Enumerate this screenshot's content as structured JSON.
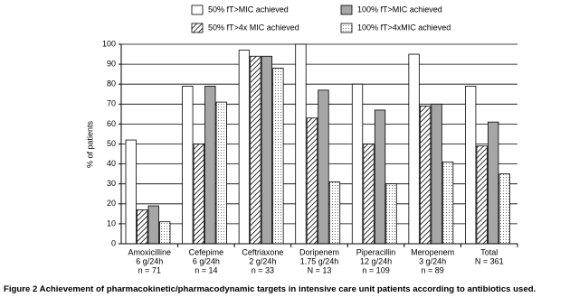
{
  "chart_data": {
    "type": "bar",
    "caption_label": "Figure 2",
    "caption": "Achievement of pharmacokinetic/pharmacodynamic targets in intensive care unit patients according to antibiotics used.",
    "y_label": "% of patients",
    "categories": [
      [
        "Amoxicilline",
        "6 g/24h",
        "n = 71"
      ],
      [
        "Cefepime",
        "6 g/24h",
        "n = 14"
      ],
      [
        "Ceftriaxone",
        "2 g/24h",
        "n = 33"
      ],
      [
        "Doripenem",
        "1.75 g/24h",
        "N = 13"
      ],
      [
        "Piperacillin",
        "12 g/24h",
        "n = 109"
      ],
      [
        "Meropenem",
        "3 g/24h",
        "n = 89"
      ],
      [
        "Total",
        "N = 361"
      ]
    ],
    "series": [
      {
        "name": "50% fT>MIC achieved",
        "color": "#ffffff",
        "pattern": "none",
        "values": [
          52,
          79,
          97,
          100,
          80,
          95,
          79
        ]
      },
      {
        "name": "50% fT>4x MIC achieved",
        "color": "#ffffff",
        "pattern": "hatch",
        "values": [
          17,
          50,
          94,
          63,
          50,
          69,
          49
        ]
      },
      {
        "name": "100% fT>MIC achieved",
        "color": "#a6a6a6",
        "pattern": "none",
        "values": [
          19,
          79,
          94,
          77,
          67,
          70,
          61
        ]
      },
      {
        "name": "100% fT>4xMIC achieved",
        "color": "#ffffff",
        "pattern": "dots",
        "values": [
          11,
          71,
          88,
          31,
          30,
          41,
          35
        ]
      }
    ],
    "ylim": [
      0,
      100
    ],
    "yticks": [
      0,
      10,
      20,
      30,
      40,
      50,
      60,
      70,
      80,
      90,
      100
    ],
    "grid": true
  }
}
